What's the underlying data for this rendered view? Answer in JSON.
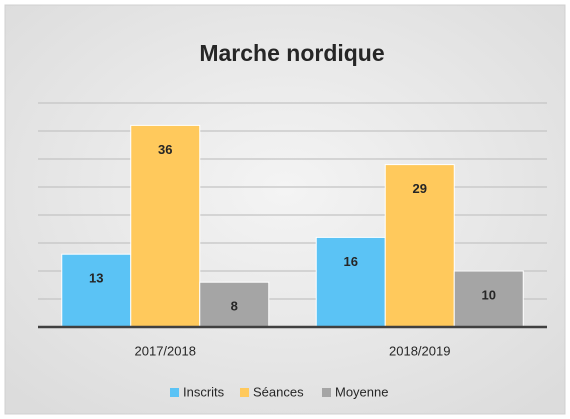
{
  "chart_data": {
    "type": "bar",
    "title": "Marche nordique",
    "categories": [
      "2017/2018",
      "2018/2019"
    ],
    "series": [
      {
        "name": "Inscrits",
        "color": "#5bc3f5",
        "values": [
          13,
          16
        ]
      },
      {
        "name": "Séances",
        "color": "#ffc95c",
        "values": [
          36,
          29
        ]
      },
      {
        "name": "Moyenne",
        "color": "#a5a5a5",
        "values": [
          8,
          10
        ]
      }
    ],
    "ylim": [
      0,
      40
    ],
    "yticks": [
      0,
      5,
      10,
      15,
      20,
      25,
      30,
      35,
      40
    ],
    "grid": true,
    "legend": "bottom"
  }
}
